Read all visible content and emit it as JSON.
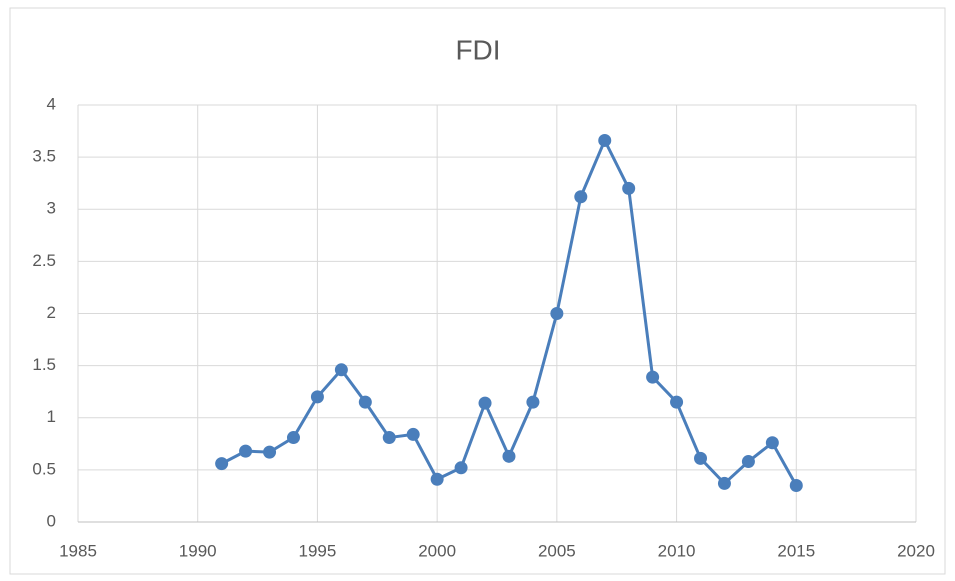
{
  "chart_data": {
    "type": "line",
    "title": "FDI",
    "x": [
      1991,
      1992,
      1993,
      1994,
      1995,
      1996,
      1997,
      1998,
      1999,
      2000,
      2001,
      2002,
      2003,
      2004,
      2005,
      2006,
      2007,
      2008,
      2009,
      2010,
      2011,
      2012,
      2013,
      2014,
      2015
    ],
    "series": [
      {
        "name": "FDI",
        "color": "#4a7ebb",
        "values": [
          0.56,
          0.68,
          0.67,
          0.81,
          1.2,
          1.46,
          1.15,
          0.81,
          0.84,
          0.41,
          0.52,
          1.14,
          0.63,
          1.15,
          2.0,
          3.12,
          3.66,
          3.2,
          1.39,
          1.15,
          0.61,
          0.37,
          0.58,
          0.76,
          0.35
        ]
      }
    ],
    "xlim": [
      1985,
      2020
    ],
    "xticks": [
      1985,
      1990,
      1995,
      2000,
      2005,
      2010,
      2015,
      2020
    ],
    "ylim": [
      0,
      4
    ],
    "yticks": [
      0,
      0.5,
      1,
      1.5,
      2,
      2.5,
      3,
      3.5,
      4
    ],
    "grid": true
  }
}
